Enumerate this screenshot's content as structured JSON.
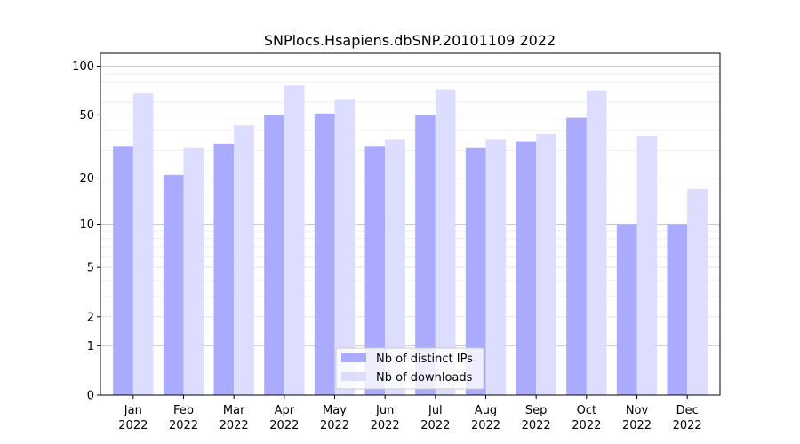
{
  "chart_data": {
    "type": "bar",
    "title": "SNPlocs.Hsapiens.dbSNP.20101109 2022",
    "xlabel": "",
    "ylabel": "",
    "yscale": "log(1+y)",
    "ylim": [
      0,
      120
    ],
    "y_ticks": [
      {
        "value": 0,
        "label": "0"
      },
      {
        "value": 1,
        "label": "1"
      },
      {
        "value": 2,
        "label": "2"
      },
      {
        "value": 5,
        "label": "5"
      },
      {
        "value": 10,
        "label": "10"
      },
      {
        "value": 20,
        "label": "20"
      },
      {
        "value": 50,
        "label": "50"
      },
      {
        "value": 100,
        "label": "100"
      }
    ],
    "categories": [
      {
        "month": "Jan",
        "year": "2022"
      },
      {
        "month": "Feb",
        "year": "2022"
      },
      {
        "month": "Mar",
        "year": "2022"
      },
      {
        "month": "Apr",
        "year": "2022"
      },
      {
        "month": "May",
        "year": "2022"
      },
      {
        "month": "Jun",
        "year": "2022"
      },
      {
        "month": "Jul",
        "year": "2022"
      },
      {
        "month": "Aug",
        "year": "2022"
      },
      {
        "month": "Sep",
        "year": "2022"
      },
      {
        "month": "Oct",
        "year": "2022"
      },
      {
        "month": "Nov",
        "year": "2022"
      },
      {
        "month": "Dec",
        "year": "2022"
      }
    ],
    "series": [
      {
        "name": "Nb of distinct IPs",
        "color": "#aaaaff",
        "values": [
          32,
          21,
          33,
          50,
          51,
          32,
          50,
          31,
          34,
          48,
          10,
          10
        ]
      },
      {
        "name": "Nb of downloads",
        "color": "#ddddff",
        "values": [
          68,
          31,
          43,
          76,
          62,
          35,
          72,
          35,
          38,
          71,
          37,
          17
        ]
      }
    ],
    "grid": true,
    "legend_position": "bottom-center"
  }
}
